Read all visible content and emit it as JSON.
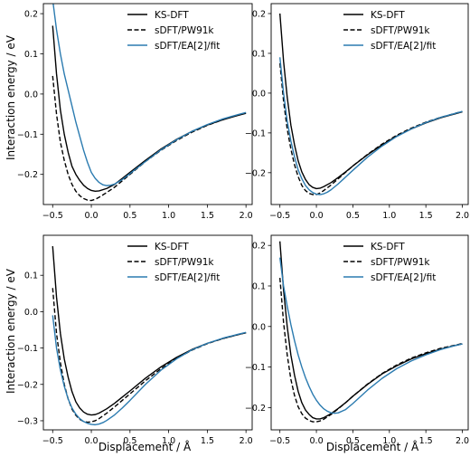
{
  "figure": {
    "series_names": [
      "KS-DFT",
      "sDFT/PW91k",
      "sDFT/EA[2]/fit"
    ],
    "series_colors": [
      "#000000",
      "#000000",
      "#2b7bb0"
    ],
    "series_styles": [
      "solid",
      "dashed",
      "solid"
    ]
  },
  "chart_data": [
    {
      "type": "line",
      "xlabel": "",
      "ylabel": "Interaction energy / eV",
      "xlim": [
        -0.62,
        2.08
      ],
      "ylim": [
        -0.275,
        0.225
      ],
      "xticks": [
        -0.5,
        0.0,
        0.5,
        1.0,
        1.5,
        2.0
      ],
      "xtick_labels": [
        "−0.5",
        "0.0",
        "0.5",
        "1.0",
        "1.5",
        "2.0"
      ],
      "yticks": [
        0.2,
        0.1,
        0.0,
        -0.1,
        -0.2
      ],
      "ytick_labels": [
        "0.2",
        "0.1",
        "0.0",
        "−0.1",
        "−0.2"
      ],
      "legend": "top-right",
      "series": [
        {
          "name": "KS-DFT",
          "x": [
            -0.5,
            -0.45,
            -0.4,
            -0.35,
            -0.3,
            -0.25,
            -0.2,
            -0.15,
            -0.1,
            -0.05,
            0,
            0.05,
            0.1,
            0.2,
            0.3,
            0.4,
            0.5,
            0.7,
            0.9,
            1.1,
            1.3,
            1.5,
            1.7,
            1.9,
            2.0
          ],
          "y": [
            0.17,
            0.05,
            -0.04,
            -0.1,
            -0.145,
            -0.18,
            -0.2,
            -0.215,
            -0.227,
            -0.235,
            -0.24,
            -0.242,
            -0.241,
            -0.235,
            -0.225,
            -0.21,
            -0.195,
            -0.165,
            -0.137,
            -0.113,
            -0.093,
            -0.077,
            -0.064,
            -0.053,
            -0.048
          ]
        },
        {
          "name": "sDFT/PW91k",
          "x": [
            -0.5,
            -0.45,
            -0.4,
            -0.35,
            -0.3,
            -0.25,
            -0.2,
            -0.15,
            -0.1,
            -0.05,
            0,
            0.05,
            0.1,
            0.2,
            0.3,
            0.4,
            0.5,
            0.7,
            0.9,
            1.1,
            1.3,
            1.5,
            1.7,
            1.9,
            2.0
          ],
          "y": [
            0.045,
            -0.05,
            -0.12,
            -0.165,
            -0.2,
            -0.225,
            -0.242,
            -0.253,
            -0.26,
            -0.264,
            -0.265,
            -0.262,
            -0.257,
            -0.245,
            -0.232,
            -0.216,
            -0.2,
            -0.168,
            -0.14,
            -0.116,
            -0.095,
            -0.078,
            -0.064,
            -0.052,
            -0.047
          ]
        },
        {
          "name": "sDFT/EA[2]/fit",
          "x": [
            -0.5,
            -0.45,
            -0.4,
            -0.35,
            -0.3,
            -0.25,
            -0.2,
            -0.15,
            -0.1,
            -0.05,
            0,
            0.05,
            0.1,
            0.15,
            0.2,
            0.25,
            0.3,
            0.4,
            0.5,
            0.7,
            0.9,
            1.1,
            1.3,
            1.5,
            1.7,
            1.9,
            2.0
          ],
          "y": [
            0.235,
            0.16,
            0.1,
            0.05,
            0.01,
            -0.03,
            -0.07,
            -0.105,
            -0.14,
            -0.17,
            -0.195,
            -0.21,
            -0.22,
            -0.226,
            -0.228,
            -0.227,
            -0.224,
            -0.213,
            -0.198,
            -0.168,
            -0.139,
            -0.114,
            -0.093,
            -0.076,
            -0.062,
            -0.051,
            -0.046
          ]
        }
      ]
    },
    {
      "type": "line",
      "xlabel": "",
      "ylabel": "",
      "xlim": [
        -0.62,
        2.08
      ],
      "ylim": [
        -0.28,
        0.225
      ],
      "xticks": [
        -0.5,
        0.0,
        0.5,
        1.0,
        1.5,
        2.0
      ],
      "xtick_labels": [
        "−0.5",
        "0.0",
        "0.5",
        "1.0",
        "1.5",
        "2.0"
      ],
      "yticks": [
        0.2,
        0.1,
        0.0,
        -0.1,
        -0.2
      ],
      "ytick_labels": [
        "0.2",
        "0.1",
        "0.0",
        "−0.1",
        "−0.2"
      ],
      "legend": "top-right",
      "series": [
        {
          "name": "KS-DFT",
          "x": [
            -0.5,
            -0.45,
            -0.4,
            -0.35,
            -0.3,
            -0.25,
            -0.2,
            -0.15,
            -0.1,
            -0.05,
            0,
            0.05,
            0.1,
            0.2,
            0.3,
            0.4,
            0.5,
            0.7,
            0.9,
            1.1,
            1.3,
            1.5,
            1.7,
            1.9,
            2.0
          ],
          "y": [
            0.2,
            0.08,
            -0.01,
            -0.08,
            -0.13,
            -0.17,
            -0.198,
            -0.217,
            -0.23,
            -0.237,
            -0.24,
            -0.239,
            -0.235,
            -0.225,
            -0.212,
            -0.198,
            -0.183,
            -0.155,
            -0.13,
            -0.108,
            -0.09,
            -0.075,
            -0.062,
            -0.052,
            -0.047
          ]
        },
        {
          "name": "sDFT/PW91k",
          "x": [
            -0.5,
            -0.45,
            -0.4,
            -0.35,
            -0.3,
            -0.25,
            -0.2,
            -0.15,
            -0.1,
            -0.05,
            0,
            0.05,
            0.1,
            0.2,
            0.3,
            0.4,
            0.5,
            0.7,
            0.9,
            1.1,
            1.3,
            1.5,
            1.7,
            1.9,
            2.0
          ],
          "y": [
            0.075,
            -0.02,
            -0.09,
            -0.14,
            -0.18,
            -0.21,
            -0.232,
            -0.245,
            -0.252,
            -0.255,
            -0.255,
            -0.251,
            -0.245,
            -0.231,
            -0.215,
            -0.199,
            -0.183,
            -0.154,
            -0.128,
            -0.106,
            -0.088,
            -0.073,
            -0.061,
            -0.051,
            -0.046
          ]
        },
        {
          "name": "sDFT/EA[2]/fit",
          "x": [
            -0.5,
            -0.45,
            -0.4,
            -0.35,
            -0.3,
            -0.25,
            -0.2,
            -0.15,
            -0.1,
            -0.05,
            0,
            0.05,
            0.1,
            0.15,
            0.2,
            0.3,
            0.4,
            0.5,
            0.7,
            0.9,
            1.1,
            1.3,
            1.5,
            1.7,
            1.9,
            2.0
          ],
          "y": [
            0.09,
            0.0,
            -0.07,
            -0.12,
            -0.16,
            -0.193,
            -0.215,
            -0.232,
            -0.243,
            -0.25,
            -0.254,
            -0.255,
            -0.253,
            -0.249,
            -0.243,
            -0.228,
            -0.211,
            -0.194,
            -0.161,
            -0.133,
            -0.109,
            -0.09,
            -0.074,
            -0.061,
            -0.051,
            -0.046
          ]
        }
      ]
    },
    {
      "type": "line",
      "xlabel": "Displacement / Å",
      "ylabel": "Interaction energy / eV",
      "xlim": [
        -0.62,
        2.08
      ],
      "ylim": [
        -0.325,
        0.21
      ],
      "xticks": [
        -0.5,
        0.0,
        0.5,
        1.0,
        1.5,
        2.0
      ],
      "xtick_labels": [
        "−0.5",
        "0.0",
        "0.5",
        "1.0",
        "1.5",
        "2.0"
      ],
      "yticks": [
        0.1,
        0.0,
        -0.1,
        -0.2,
        -0.3
      ],
      "ytick_labels": [
        "0.1",
        "0.0",
        "−0.1",
        "−0.2",
        "−0.3"
      ],
      "legend": "top-right",
      "series": [
        {
          "name": "KS-DFT",
          "x": [
            -0.5,
            -0.45,
            -0.4,
            -0.35,
            -0.3,
            -0.25,
            -0.2,
            -0.15,
            -0.1,
            -0.05,
            0,
            0.05,
            0.1,
            0.2,
            0.3,
            0.4,
            0.5,
            0.7,
            0.9,
            1.1,
            1.3,
            1.5,
            1.7,
            1.9,
            2.0
          ],
          "y": [
            0.18,
            0.04,
            -0.06,
            -0.13,
            -0.18,
            -0.22,
            -0.248,
            -0.265,
            -0.276,
            -0.282,
            -0.284,
            -0.283,
            -0.279,
            -0.267,
            -0.252,
            -0.235,
            -0.218,
            -0.183,
            -0.152,
            -0.126,
            -0.104,
            -0.087,
            -0.074,
            -0.063,
            -0.058
          ]
        },
        {
          "name": "sDFT/PW91k",
          "x": [
            -0.5,
            -0.45,
            -0.4,
            -0.35,
            -0.3,
            -0.25,
            -0.2,
            -0.15,
            -0.1,
            -0.05,
            0,
            0.05,
            0.1,
            0.2,
            0.3,
            0.4,
            0.5,
            0.7,
            0.9,
            1.1,
            1.3,
            1.5,
            1.7,
            1.9,
            2.0
          ],
          "y": [
            0.065,
            -0.06,
            -0.14,
            -0.2,
            -0.24,
            -0.268,
            -0.285,
            -0.296,
            -0.302,
            -0.304,
            -0.303,
            -0.3,
            -0.294,
            -0.279,
            -0.262,
            -0.244,
            -0.226,
            -0.19,
            -0.157,
            -0.129,
            -0.106,
            -0.088,
            -0.074,
            -0.063,
            -0.058
          ]
        },
        {
          "name": "sDFT/EA[2]/fit",
          "x": [
            -0.5,
            -0.45,
            -0.4,
            -0.35,
            -0.3,
            -0.25,
            -0.2,
            -0.15,
            -0.1,
            -0.05,
            0,
            0.05,
            0.1,
            0.15,
            0.2,
            0.3,
            0.4,
            0.5,
            0.7,
            0.9,
            1.1,
            1.3,
            1.5,
            1.7,
            1.9,
            2.0
          ],
          "y": [
            -0.01,
            -0.1,
            -0.16,
            -0.205,
            -0.24,
            -0.265,
            -0.282,
            -0.294,
            -0.302,
            -0.307,
            -0.31,
            -0.311,
            -0.309,
            -0.305,
            -0.299,
            -0.284,
            -0.265,
            -0.244,
            -0.2,
            -0.161,
            -0.13,
            -0.105,
            -0.087,
            -0.073,
            -0.062,
            -0.057
          ]
        }
      ]
    },
    {
      "type": "line",
      "xlabel": "Displacement / Å",
      "ylabel": "",
      "xlim": [
        -0.62,
        2.08
      ],
      "ylim": [
        -0.255,
        0.225
      ],
      "xticks": [
        -0.5,
        0.0,
        0.5,
        1.0,
        1.5,
        2.0
      ],
      "xtick_labels": [
        "−0.5",
        "0.0",
        "0.5",
        "1.0",
        "1.5",
        "2.0"
      ],
      "yticks": [
        0.2,
        0.1,
        0.0,
        -0.1,
        -0.2
      ],
      "ytick_labels": [
        "0.2",
        "0.1",
        "0.0",
        "−0.1",
        "−0.2"
      ],
      "legend": "top-right",
      "series": [
        {
          "name": "KS-DFT",
          "x": [
            -0.5,
            -0.45,
            -0.4,
            -0.35,
            -0.3,
            -0.25,
            -0.2,
            -0.15,
            -0.1,
            -0.05,
            0,
            0.05,
            0.1,
            0.2,
            0.3,
            0.4,
            0.5,
            0.7,
            0.9,
            1.1,
            1.3,
            1.5,
            1.7,
            1.9,
            2.0
          ],
          "y": [
            0.21,
            0.09,
            0.0,
            -0.07,
            -0.12,
            -0.16,
            -0.188,
            -0.206,
            -0.217,
            -0.225,
            -0.228,
            -0.228,
            -0.225,
            -0.215,
            -0.202,
            -0.188,
            -0.172,
            -0.143,
            -0.117,
            -0.097,
            -0.08,
            -0.067,
            -0.056,
            -0.047,
            -0.043
          ]
        },
        {
          "name": "sDFT/PW91k",
          "x": [
            -0.5,
            -0.45,
            -0.4,
            -0.35,
            -0.3,
            -0.25,
            -0.2,
            -0.15,
            -0.1,
            -0.05,
            0,
            0.05,
            0.1,
            0.2,
            0.3,
            0.4,
            0.5,
            0.7,
            0.9,
            1.1,
            1.3,
            1.5,
            1.7,
            1.9,
            2.0
          ],
          "y": [
            0.12,
            0.01,
            -0.07,
            -0.13,
            -0.17,
            -0.198,
            -0.215,
            -0.226,
            -0.232,
            -0.235,
            -0.235,
            -0.233,
            -0.229,
            -0.217,
            -0.203,
            -0.188,
            -0.172,
            -0.142,
            -0.116,
            -0.095,
            -0.078,
            -0.065,
            -0.054,
            -0.046,
            -0.042
          ]
        },
        {
          "name": "sDFT/EA[2]/fit",
          "x": [
            -0.5,
            -0.45,
            -0.4,
            -0.35,
            -0.3,
            -0.25,
            -0.2,
            -0.15,
            -0.1,
            -0.05,
            0,
            0.05,
            0.1,
            0.15,
            0.2,
            0.25,
            0.3,
            0.4,
            0.5,
            0.7,
            0.9,
            1.1,
            1.3,
            1.5,
            1.7,
            1.9,
            2.0
          ],
          "y": [
            0.17,
            0.1,
            0.05,
            0.005,
            -0.035,
            -0.07,
            -0.1,
            -0.126,
            -0.148,
            -0.167,
            -0.182,
            -0.194,
            -0.203,
            -0.209,
            -0.213,
            -0.214,
            -0.213,
            -0.205,
            -0.19,
            -0.157,
            -0.128,
            -0.104,
            -0.085,
            -0.07,
            -0.057,
            -0.047,
            -0.043
          ]
        }
      ]
    }
  ]
}
